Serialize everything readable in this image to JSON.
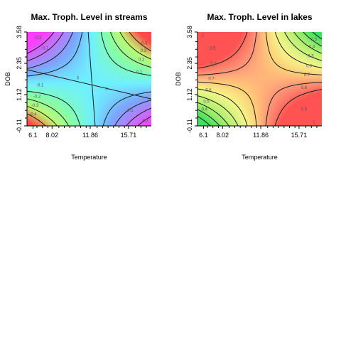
{
  "chart_data": [
    {
      "type": "heatmap",
      "title": "Max. Troph. Level  in streams",
      "xlabel": "Temperature",
      "ylabel": "DOB",
      "xlim": [
        5.5,
        18.0
      ],
      "ylim": [
        -0.11,
        3.58
      ],
      "x_ticks": [
        "6.1",
        "8.02",
        "11.86",
        "15.71"
      ],
      "x_tick_values": [
        6.1,
        8.02,
        11.86,
        15.71
      ],
      "y_ticks": [
        "-0.11",
        "1.12",
        "2.35",
        "3.58"
      ],
      "y_tick_values": [
        -0.11,
        1.12,
        2.35,
        3.58
      ],
      "surface": {
        "c": 0.0,
        "x0": 12.0,
        "y0": 1.55,
        "k": 0.0,
        "a": 0.052
      },
      "color_stops": [
        {
          "v": -0.5,
          "color": "#ff3cff"
        },
        {
          "v": -0.3,
          "color": "#b97aff"
        },
        {
          "v": -0.15,
          "color": "#7aa8ff"
        },
        {
          "v": 0.0,
          "color": "#6ff0ff"
        },
        {
          "v": 0.15,
          "color": "#86ffa8"
        },
        {
          "v": 0.3,
          "color": "#bff870"
        },
        {
          "v": 0.5,
          "color": "#ff4848"
        }
      ],
      "contour_levels": [
        -0.4,
        -0.3,
        -0.2,
        -0.1,
        0,
        0.1,
        0.2,
        0.3,
        0.4
      ],
      "contour_labels": [
        {
          "text": "-0.2",
          "x": 6.6,
          "y": 3.35
        },
        {
          "text": "-0.1",
          "x": 7.3,
          "y": 2.95
        },
        {
          "text": "0",
          "x": 10.6,
          "y": 1.77
        },
        {
          "text": "0",
          "x": 13.5,
          "y": 1.35
        },
        {
          "text": "0.1",
          "x": 15.9,
          "y": 0.5
        },
        {
          "text": "0.2",
          "x": 17.4,
          "y": 0.1
        },
        {
          "text": "-0.1",
          "x": 6.8,
          "y": 1.5
        },
        {
          "text": "-0.2",
          "x": 6.5,
          "y": 1.05
        },
        {
          "text": "-0.3",
          "x": 6.3,
          "y": 0.7
        },
        {
          "text": "-0.4",
          "x": 6.1,
          "y": 0.35
        },
        {
          "text": "0.4",
          "x": 17.3,
          "y": 3.15
        },
        {
          "text": "0.3",
          "x": 17.2,
          "y": 2.85
        },
        {
          "text": "0.2",
          "x": 17.0,
          "y": 2.5
        },
        {
          "text": "0.1",
          "x": 16.8,
          "y": 2.0
        }
      ]
    },
    {
      "type": "heatmap",
      "title": "Max. Troph. Level in lakes",
      "xlabel": "Temperature",
      "ylabel": "DOB",
      "xlim": [
        5.5,
        18.0
      ],
      "ylim": [
        -0.11,
        3.58
      ],
      "x_ticks": [
        "6.1",
        "8.02",
        "11.86",
        "15.71"
      ],
      "x_tick_values": [
        6.1,
        8.02,
        11.86,
        15.71
      ],
      "y_ticks": [
        "-0.11",
        "1.12",
        "2.35",
        "3.58"
      ],
      "y_tick_values": [
        -0.11,
        1.12,
        2.35,
        3.58
      ],
      "surface": {
        "c": 0.85,
        "x0": 11.9,
        "y0": 1.75,
        "k": 0.0,
        "a": -0.058
      },
      "color_stops": [
        {
          "v": 0.3,
          "color": "#3fe060"
        },
        {
          "v": 0.5,
          "color": "#aef070"
        },
        {
          "v": 0.7,
          "color": "#f4f58a"
        },
        {
          "v": 0.8,
          "color": "#ffd07a"
        },
        {
          "v": 0.9,
          "color": "#ff9878"
        },
        {
          "v": 1.05,
          "color": "#ff5252"
        }
      ],
      "contour_levels": [
        0.3,
        0.4,
        0.5,
        0.6,
        0.7,
        0.8,
        0.9,
        1.0
      ],
      "contour_labels": [
        {
          "text": "1",
          "x": 6.0,
          "y": 3.45
        },
        {
          "text": "0.9",
          "x": 7.0,
          "y": 2.95
        },
        {
          "text": "0.8",
          "x": 7.1,
          "y": 2.35
        },
        {
          "text": "0.7",
          "x": 6.9,
          "y": 1.75
        },
        {
          "text": "0.6",
          "x": 6.6,
          "y": 1.3
        },
        {
          "text": "0.5",
          "x": 6.4,
          "y": 0.85
        },
        {
          "text": "0.4",
          "x": 6.2,
          "y": 0.55
        },
        {
          "text": "0.3",
          "x": 17.2,
          "y": 3.3
        },
        {
          "text": "0.4",
          "x": 17.0,
          "y": 3.0
        },
        {
          "text": "0.5",
          "x": 16.9,
          "y": 2.65
        },
        {
          "text": "0.6",
          "x": 16.7,
          "y": 2.25
        },
        {
          "text": "0.7",
          "x": 16.5,
          "y": 1.9
        },
        {
          "text": "0.8",
          "x": 16.2,
          "y": 1.4
        },
        {
          "text": "0.9",
          "x": 16.2,
          "y": 0.55
        },
        {
          "text": "1",
          "x": 17.2,
          "y": 0.05
        }
      ]
    }
  ]
}
